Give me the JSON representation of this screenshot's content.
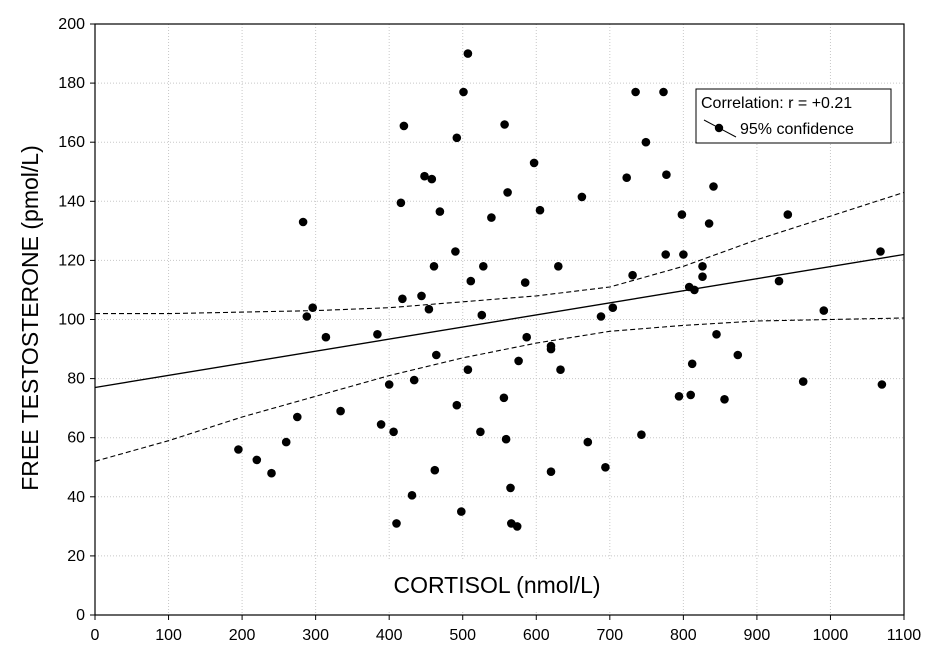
{
  "chart_data": {
    "type": "scatter",
    "title": "",
    "xlabel": "CORTISOL (nmol/L)",
    "ylabel": "FREE TESTOSTERONE (pmol/L)",
    "xlim": [
      0,
      1100
    ],
    "ylim": [
      0,
      200
    ],
    "xticks": [
      "0",
      "100",
      "200",
      "300",
      "400",
      "500",
      "600",
      "700",
      "800",
      "900",
      "1000",
      "1100"
    ],
    "yticks": [
      "0",
      "20",
      "40",
      "60",
      "80",
      "100",
      "120",
      "140",
      "160",
      "180",
      "200"
    ],
    "grid": true,
    "legend": {
      "placement": "top-right",
      "title": "Correlation: r = +0.21",
      "entry": "95% confidence"
    },
    "regression": {
      "x": [
        0,
        1100
      ],
      "y": [
        77,
        122
      ]
    },
    "ci_upper": {
      "x": [
        0,
        100,
        200,
        300,
        400,
        500,
        600,
        700,
        800,
        900,
        1000,
        1100
      ],
      "y": [
        102,
        102,
        102.5,
        103,
        104,
        106,
        108,
        111,
        118,
        127,
        135,
        143
      ]
    },
    "ci_lower": {
      "x": [
        0,
        100,
        200,
        300,
        400,
        500,
        600,
        700,
        800,
        900,
        1000,
        1100
      ],
      "y": [
        52,
        59,
        67,
        74,
        81,
        87,
        92,
        96,
        98,
        99.5,
        100,
        100.5
      ]
    },
    "points": [
      {
        "x": 195,
        "y": 56
      },
      {
        "x": 220,
        "y": 52.5
      },
      {
        "x": 240,
        "y": 48
      },
      {
        "x": 260,
        "y": 58.5
      },
      {
        "x": 275,
        "y": 67
      },
      {
        "x": 283,
        "y": 133
      },
      {
        "x": 288,
        "y": 101
      },
      {
        "x": 296,
        "y": 104
      },
      {
        "x": 314,
        "y": 94
      },
      {
        "x": 334,
        "y": 69
      },
      {
        "x": 384,
        "y": 95
      },
      {
        "x": 389,
        "y": 64.5
      },
      {
        "x": 400,
        "y": 78
      },
      {
        "x": 406,
        "y": 62
      },
      {
        "x": 410,
        "y": 31
      },
      {
        "x": 416,
        "y": 139.5
      },
      {
        "x": 418,
        "y": 107
      },
      {
        "x": 420,
        "y": 165.5
      },
      {
        "x": 431,
        "y": 40.5
      },
      {
        "x": 434,
        "y": 79.5
      },
      {
        "x": 444,
        "y": 108
      },
      {
        "x": 448,
        "y": 148.5
      },
      {
        "x": 454,
        "y": 103.5
      },
      {
        "x": 458,
        "y": 147.5
      },
      {
        "x": 461,
        "y": 118
      },
      {
        "x": 462,
        "y": 49
      },
      {
        "x": 464,
        "y": 88
      },
      {
        "x": 469,
        "y": 136.5
      },
      {
        "x": 490,
        "y": 123
      },
      {
        "x": 492,
        "y": 161.5
      },
      {
        "x": 492,
        "y": 71
      },
      {
        "x": 498,
        "y": 35
      },
      {
        "x": 501,
        "y": 177
      },
      {
        "x": 507,
        "y": 83
      },
      {
        "x": 507,
        "y": 190
      },
      {
        "x": 511,
        "y": 113
      },
      {
        "x": 524,
        "y": 62
      },
      {
        "x": 526,
        "y": 101.5
      },
      {
        "x": 528,
        "y": 118
      },
      {
        "x": 539,
        "y": 134.5
      },
      {
        "x": 556,
        "y": 73.5
      },
      {
        "x": 557,
        "y": 166
      },
      {
        "x": 559,
        "y": 59.5
      },
      {
        "x": 561,
        "y": 143
      },
      {
        "x": 565,
        "y": 43
      },
      {
        "x": 566,
        "y": 31
      },
      {
        "x": 574,
        "y": 30
      },
      {
        "x": 576,
        "y": 86
      },
      {
        "x": 585,
        "y": 112.5
      },
      {
        "x": 587,
        "y": 94
      },
      {
        "x": 597,
        "y": 153
      },
      {
        "x": 605,
        "y": 137
      },
      {
        "x": 620,
        "y": 91
      },
      {
        "x": 620,
        "y": 90
      },
      {
        "x": 620,
        "y": 48.5
      },
      {
        "x": 630,
        "y": 118
      },
      {
        "x": 633,
        "y": 83
      },
      {
        "x": 662,
        "y": 141.5
      },
      {
        "x": 670,
        "y": 58.5
      },
      {
        "x": 688,
        "y": 101
      },
      {
        "x": 694,
        "y": 50
      },
      {
        "x": 704,
        "y": 104
      },
      {
        "x": 723,
        "y": 148
      },
      {
        "x": 731,
        "y": 115
      },
      {
        "x": 735,
        "y": 177
      },
      {
        "x": 743,
        "y": 61
      },
      {
        "x": 749,
        "y": 160
      },
      {
        "x": 773,
        "y": 177
      },
      {
        "x": 776,
        "y": 122
      },
      {
        "x": 777,
        "y": 149
      },
      {
        "x": 794,
        "y": 74
      },
      {
        "x": 798,
        "y": 135.5
      },
      {
        "x": 800,
        "y": 122
      },
      {
        "x": 808,
        "y": 111
      },
      {
        "x": 810,
        "y": 74.5
      },
      {
        "x": 812,
        "y": 85
      },
      {
        "x": 815,
        "y": 110
      },
      {
        "x": 826,
        "y": 118
      },
      {
        "x": 826,
        "y": 114.5
      },
      {
        "x": 835,
        "y": 132.5
      },
      {
        "x": 841,
        "y": 145
      },
      {
        "x": 845,
        "y": 95
      },
      {
        "x": 856,
        "y": 73
      },
      {
        "x": 874,
        "y": 88
      },
      {
        "x": 930,
        "y": 113
      },
      {
        "x": 942,
        "y": 135.5
      },
      {
        "x": 963,
        "y": 79
      },
      {
        "x": 991,
        "y": 103
      },
      {
        "x": 1068,
        "y": 123
      },
      {
        "x": 1070,
        "y": 78
      }
    ]
  }
}
